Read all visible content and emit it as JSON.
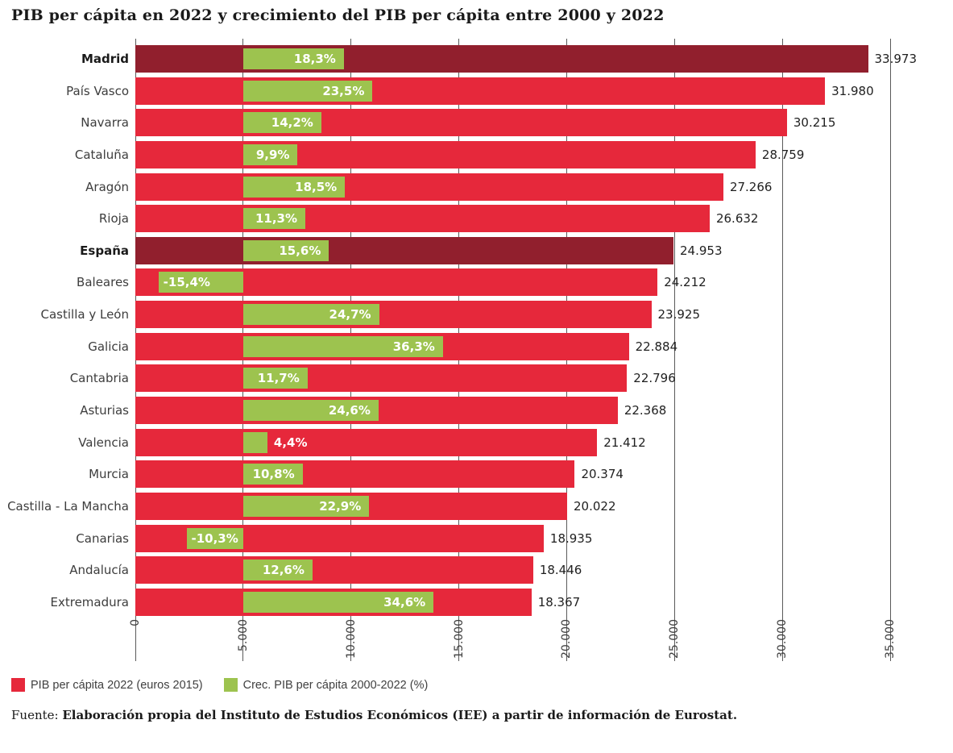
{
  "page": {
    "title": "PIB per cápita en 2022 y crecimiento del PIB per cápita entre 2000 y 2022"
  },
  "source": {
    "prefix": "Fuente:",
    "text": "Elaboración propia del Instituto de Estudios Económicos (IEE) a partir de información de Eurostat."
  },
  "chart_data": {
    "type": "bar",
    "orientation": "horizontal",
    "title": "PIB per cápita en 2022 y crecimiento del PIB per cápita entre 2000 y 2022",
    "categories": [
      "Madrid",
      "País Vasco",
      "Navarra",
      "Cataluña",
      "Aragón",
      "Rioja",
      "España",
      "Baleares",
      "Castilla y León",
      "Galicia",
      "Cantabria",
      "Asturias",
      "Valencia",
      "Murcia",
      "Castilla - La Mancha",
      "Canarias",
      "Andalucía",
      "Extremadura"
    ],
    "series": [
      {
        "name": "PIB per cápita 2022 (euros 2015)",
        "color": "#e6283b",
        "values": [
          33973,
          31980,
          30215,
          28759,
          27266,
          26632,
          24953,
          24212,
          23925,
          22884,
          22796,
          22368,
          21412,
          20374,
          20022,
          18935,
          18446,
          18367
        ],
        "labels": [
          "33.973",
          "31.980",
          "30.215",
          "28.759",
          "27.266",
          "26.632",
          "24.953",
          "24.212",
          "23.925",
          "22.884",
          "22.796",
          "22.368",
          "21.412",
          "20.374",
          "20.022",
          "18.935",
          "18.446",
          "18.367"
        ]
      },
      {
        "name": "Crec. PIB per cápita 2000-2022 (%)",
        "color": "#9dc34f",
        "values": [
          18.3,
          23.5,
          14.2,
          9.9,
          18.5,
          11.3,
          15.6,
          -15.4,
          24.7,
          36.3,
          11.7,
          24.6,
          4.4,
          10.8,
          22.9,
          -10.3,
          12.6,
          34.6
        ],
        "labels": [
          "18,3%",
          "23,5%",
          "14,2%",
          "9,9%",
          "18,5%",
          "11,3%",
          "15,6%",
          "-15,4%",
          "24,7%",
          "36,3%",
          "11,7%",
          "24,6%",
          "4,4%",
          "10,8%",
          "22,9%",
          "-10,3%",
          "12,6%",
          "34,6%"
        ]
      }
    ],
    "emphasized_categories": [
      "Madrid",
      "España"
    ],
    "emphasis_color": "#911f2d",
    "xlim": [
      0,
      35000
    ],
    "xticks": [
      "0",
      "5.000",
      "10.000",
      "15.000",
      "20.000",
      "25.000",
      "30.000",
      "35.000"
    ],
    "grid": true,
    "legend_position": "bottom",
    "growth_baseline_x": 5000,
    "growth_bar_scale_pct_per_point": 0.729
  }
}
